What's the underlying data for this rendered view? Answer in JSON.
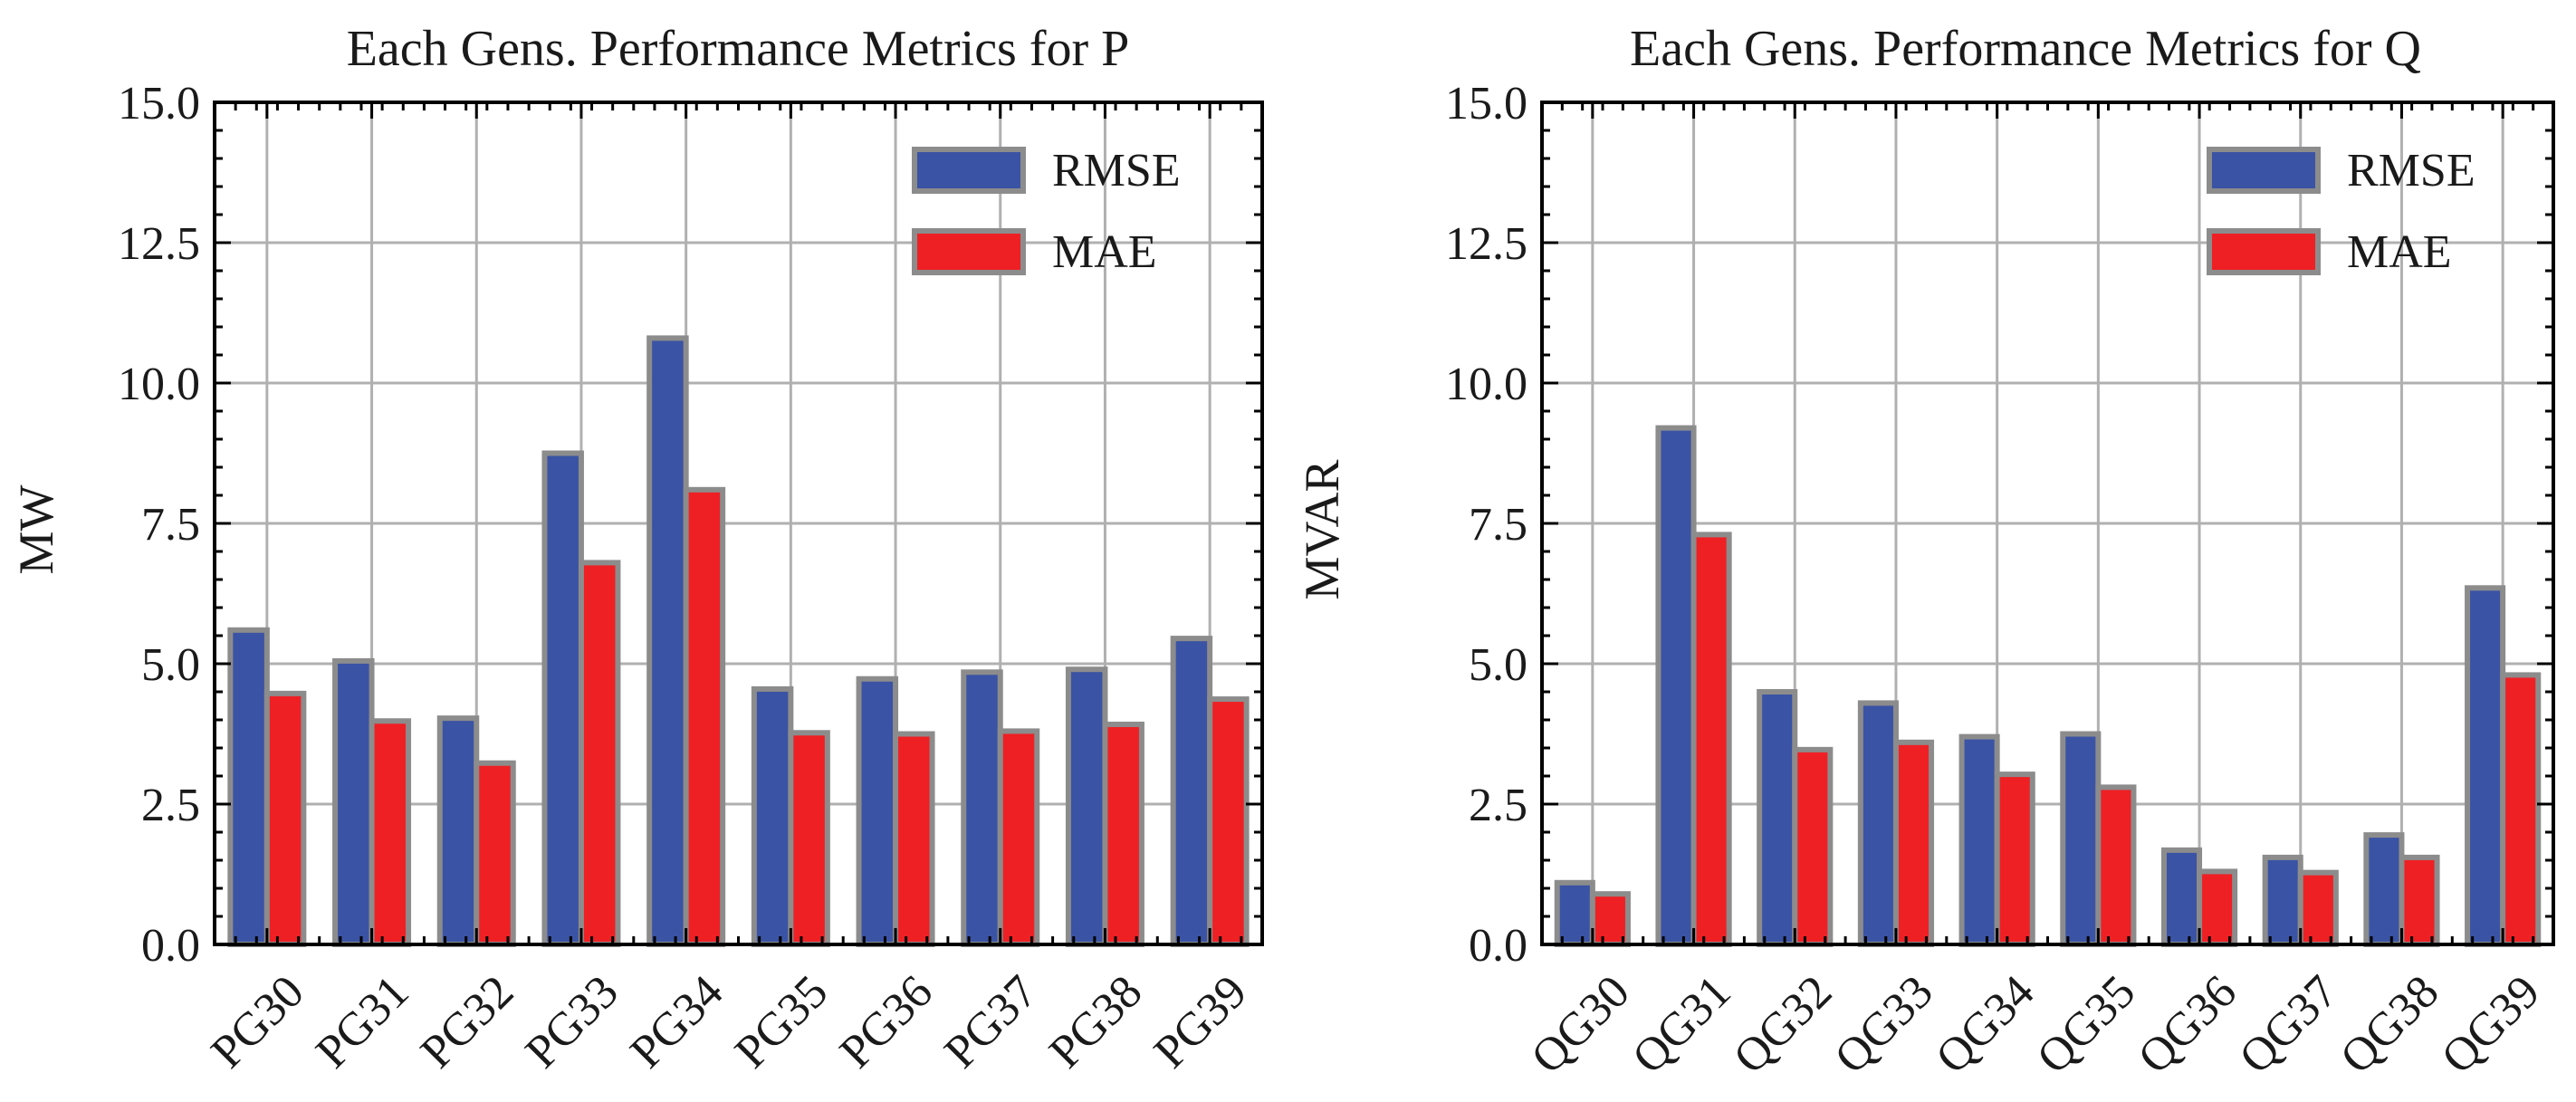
{
  "chart_data": [
    {
      "type": "bar",
      "title": "Each Gens. Performance Metrics for P",
      "xlabel": "",
      "ylabel": "MW",
      "ylim": [
        0,
        15
      ],
      "yticks": [
        "0.0",
        "2.5",
        "5.0",
        "7.5",
        "10.0",
        "12.5",
        "15.0"
      ],
      "grid": true,
      "legend_position": "top-right",
      "categories": [
        "PG30",
        "PG31",
        "PG32",
        "PG33",
        "PG34",
        "PG35",
        "PG36",
        "PG37",
        "PG38",
        "PG39"
      ],
      "series": [
        {
          "name": "RMSE",
          "color": "#3a53a4",
          "values": [
            5.6,
            5.05,
            4.03,
            8.75,
            10.8,
            4.55,
            4.73,
            4.85,
            4.9,
            5.45
          ]
        },
        {
          "name": "MAE",
          "color": "#ee2024",
          "values": [
            4.47,
            3.98,
            3.23,
            6.8,
            8.1,
            3.77,
            3.75,
            3.8,
            3.92,
            4.37
          ]
        }
      ]
    },
    {
      "type": "bar",
      "title": "Each Gens. Performance Metrics for Q",
      "xlabel": "",
      "ylabel": "MVAR",
      "ylim": [
        0,
        15
      ],
      "yticks": [
        "0.0",
        "2.5",
        "5.0",
        "7.5",
        "10.0",
        "12.5",
        "15.0"
      ],
      "grid": true,
      "legend_position": "top-right",
      "categories": [
        "QG30",
        "QG31",
        "QG32",
        "QG33",
        "QG34",
        "QG35",
        "QG36",
        "QG37",
        "QG38",
        "QG39"
      ],
      "series": [
        {
          "name": "RMSE",
          "color": "#3a53a4",
          "values": [
            1.1,
            9.2,
            4.5,
            4.3,
            3.7,
            3.75,
            1.68,
            1.55,
            1.95,
            6.35
          ]
        },
        {
          "name": "MAE",
          "color": "#ee2024",
          "values": [
            0.9,
            7.3,
            3.47,
            3.6,
            3.03,
            2.8,
            1.3,
            1.28,
            1.55,
            4.8
          ]
        }
      ]
    }
  ]
}
